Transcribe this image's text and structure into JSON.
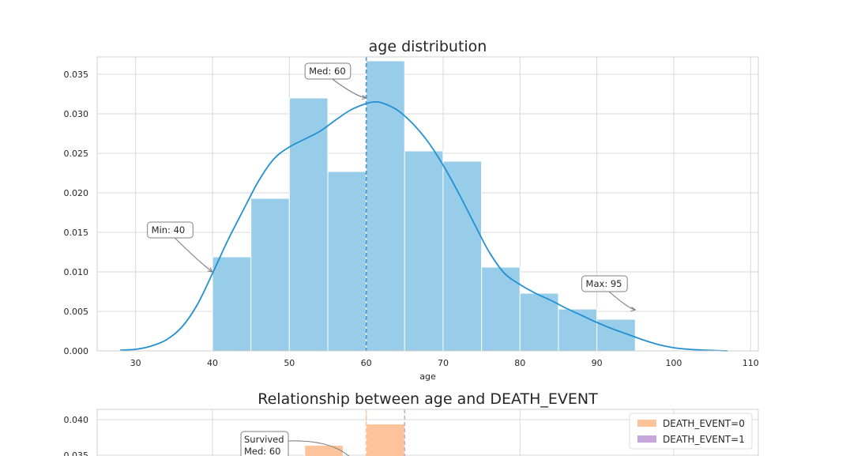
{
  "colors": {
    "hist_fill": "#98cdea",
    "kde_line": "#2391d1",
    "median_line": "#3a8fd1",
    "grid": "#d9d9d9",
    "frame": "#cfcfcf",
    "annotation_edge": "#7f7f7f",
    "death_0": "#fdc49b",
    "death_1": "#c5a7dc"
  },
  "chart_data": [
    {
      "type": "bar",
      "title": "age distribution",
      "xlabel": "age",
      "ylabel": "",
      "xlim": [
        25,
        111
      ],
      "ylim": [
        0,
        0.0372
      ],
      "xticks": [
        30,
        40,
        50,
        60,
        70,
        80,
        90,
        100,
        110
      ],
      "yticks": [
        "0.000",
        "0.005",
        "0.010",
        "0.015",
        "0.020",
        "0.025",
        "0.030",
        "0.035"
      ],
      "grid": true,
      "bins": [
        {
          "x0": 40,
          "x1": 45,
          "density": 0.0119
        },
        {
          "x0": 45,
          "x1": 50,
          "density": 0.0193
        },
        {
          "x0": 50,
          "x1": 55,
          "density": 0.032
        },
        {
          "x0": 55,
          "x1": 60,
          "density": 0.0227
        },
        {
          "x0": 60,
          "x1": 65,
          "density": 0.0367
        },
        {
          "x0": 65,
          "x1": 70,
          "density": 0.0253
        },
        {
          "x0": 70,
          "x1": 75,
          "density": 0.024
        },
        {
          "x0": 75,
          "x1": 80,
          "density": 0.0106
        },
        {
          "x0": 80,
          "x1": 85,
          "density": 0.0073
        },
        {
          "x0": 85,
          "x1": 90,
          "density": 0.0053
        },
        {
          "x0": 90,
          "x1": 95,
          "density": 0.004
        }
      ],
      "kde": {
        "x": [
          28,
          30,
          32,
          34,
          36,
          38,
          40,
          42,
          44,
          46,
          48,
          50,
          52,
          54,
          56,
          58,
          60,
          61,
          62,
          64,
          66,
          68,
          70,
          72,
          74,
          76,
          78,
          80,
          82,
          84,
          86,
          88,
          90,
          92,
          94,
          96,
          98,
          100,
          102,
          104,
          107
        ],
        "y": [
          0.0001,
          0.0002,
          0.0006,
          0.0014,
          0.003,
          0.0058,
          0.0098,
          0.014,
          0.0178,
          0.0215,
          0.0243,
          0.0258,
          0.0268,
          0.0278,
          0.0292,
          0.0305,
          0.0313,
          0.0315,
          0.0314,
          0.0305,
          0.0288,
          0.0265,
          0.0235,
          0.02,
          0.0162,
          0.0125,
          0.0098,
          0.0084,
          0.0073,
          0.0064,
          0.0054,
          0.0045,
          0.0036,
          0.0028,
          0.0021,
          0.0014,
          0.0008,
          0.0004,
          0.0002,
          0.0001,
          0.0
        ]
      },
      "median": 60,
      "annotations": [
        {
          "text": "Med: 60",
          "text_at": [
            55,
            0.0354
          ],
          "point": [
            60,
            0.032
          ]
        },
        {
          "text": "Min: 40",
          "text_at": [
            34.5,
            0.0153
          ],
          "point": [
            40,
            0.01
          ]
        },
        {
          "text": "Max: 95",
          "text_at": [
            91,
            0.0085
          ],
          "point": [
            95,
            0.0052
          ]
        }
      ]
    },
    {
      "type": "bar",
      "title": "Relationship between age and DEATH_EVENT",
      "xlim": [
        25,
        111
      ],
      "ylim": [
        0.0345,
        0.0415
      ],
      "yticks": [
        "0.040",
        "0.035"
      ],
      "grid": true,
      "series": [
        {
          "name": "DEATH_EVENT=0",
          "color": "#fdc49b",
          "bins": [
            {
              "x0": 52,
              "x1": 57,
              "density": 0.0364
            },
            {
              "x0": 60,
              "x1": 65,
              "density": 0.0394
            }
          ]
        },
        {
          "name": "DEATH_EVENT=1",
          "color": "#c5a7dc",
          "bins": []
        }
      ],
      "median_lines": [
        {
          "x": 60,
          "color": "#fdc49b"
        },
        {
          "x": 65,
          "color": "#c5a7dc"
        }
      ],
      "annotations": [
        {
          "lines": [
            "Survived",
            "Med: 60"
          ],
          "text_at": [
            46,
            0.0366
          ],
          "point": [
            57,
            0.0348
          ]
        }
      ],
      "legend": {
        "placement": "top-right",
        "entries": [
          "DEATH_EVENT=0",
          "DEATH_EVENT=1"
        ]
      }
    }
  ]
}
